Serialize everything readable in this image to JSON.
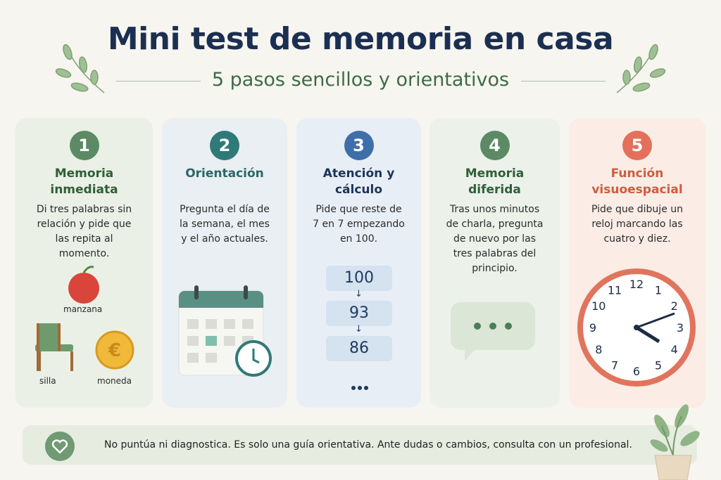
{
  "header": {
    "title": "Mini test de memoria en casa",
    "subtitle": "5 pasos sencillos y orientativos"
  },
  "steps": [
    {
      "number": 1,
      "title": "Memoria inmediata",
      "text": "Di tres palabras sin relación y pide que las repita al momento.",
      "objects": [
        "manzana",
        "silla",
        "moneda"
      ]
    },
    {
      "number": 2,
      "title": "Orientación",
      "text": "Pregunta el día de la semana, el mes y el año actuales."
    },
    {
      "number": 3,
      "title": "Atención y cálculo",
      "text": "Pide que reste de 7 en 7 empezando en 100.",
      "sequence": [
        100,
        93,
        86
      ]
    },
    {
      "number": 4,
      "title": "Memoria diferida",
      "text": "Tras unos minutos de charla, pregunta de nuevo por las tres palabras del principio."
    },
    {
      "number": 5,
      "title": "Función visuoespacial",
      "text": "Pide que dibuje un reloj marcando las cuatro y diez.",
      "clock_numbers": [
        12,
        1,
        2,
        3,
        4,
        5,
        6,
        7,
        8,
        9,
        10,
        11
      ]
    }
  ],
  "footer": {
    "note": "No puntúa ni diagnostica. Es solo una guía orientativa. Ante dudas o cambios, consulta con un profesional."
  }
}
